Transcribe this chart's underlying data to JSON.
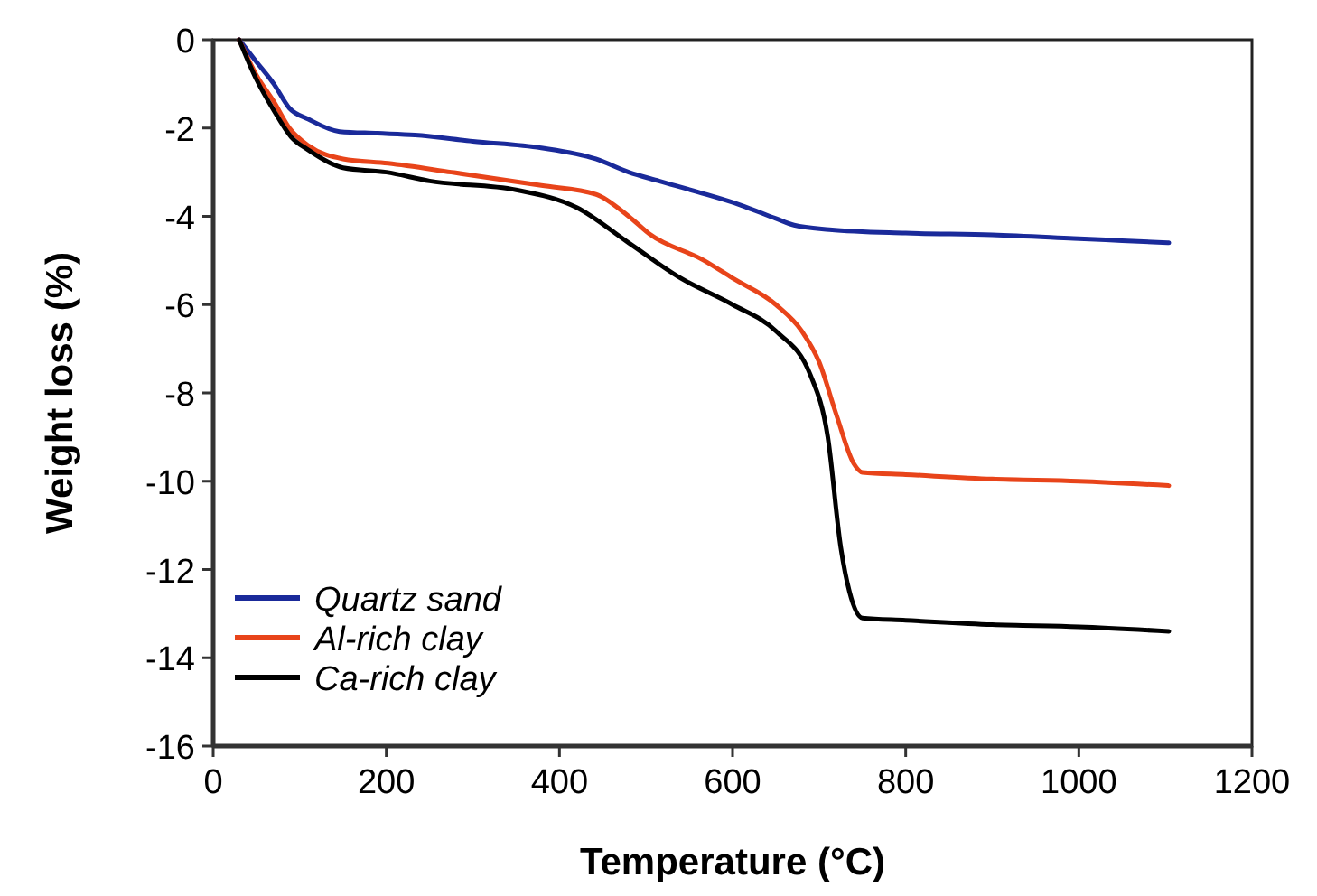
{
  "chart_data": {
    "type": "line",
    "xlabel": "Temperature (°C)",
    "ylabel": "Weight loss (%)",
    "xlim": [
      0,
      1200
    ],
    "xticks": [
      0,
      200,
      400,
      600,
      800,
      1000,
      1200
    ],
    "ylim": [
      -16,
      0
    ],
    "yticks": [
      -16,
      -14,
      -12,
      -10,
      -8,
      -6,
      -4,
      -2,
      0
    ],
    "grid": false,
    "legend": "bottom left",
    "line_style": "solid",
    "series": [
      {
        "name": "Quartz sand",
        "color": "#1a2a9a",
        "x": [
          30,
          50,
          70,
          88,
          110,
          146,
          190,
          233,
          300,
          379,
          442,
          480,
          515,
          560,
          610,
          650,
          671,
          712,
          800,
          900,
          994,
          1050,
          1104
        ],
        "values": [
          0,
          -0.5,
          -1,
          -1.55,
          -1.8,
          -2.08,
          -2.12,
          -2.16,
          -2.3,
          -2.45,
          -2.7,
          -3,
          -3.2,
          -3.45,
          -3.75,
          -4.05,
          -4.2,
          -4.3,
          -4.38,
          -4.42,
          -4.5,
          -4.55,
          -4.6
        ]
      },
      {
        "name": "Al-rich clay",
        "color": "#e8441a",
        "x": [
          30,
          50,
          70,
          88,
          110,
          150,
          202,
          275,
          379,
          442,
          480,
          504,
          567,
          600,
          650,
          680,
          700,
          720,
          740,
          750,
          800,
          900,
          1000,
          1104
        ],
        "values": [
          0,
          -0.8,
          -1.4,
          -2.0,
          -2.4,
          -2.7,
          -2.8,
          -3.0,
          -3.3,
          -3.5,
          -4.0,
          -4.4,
          -5.0,
          -5.4,
          -6.0,
          -6.6,
          -7.3,
          -8.5,
          -9.6,
          -9.8,
          -9.85,
          -9.95,
          -10.0,
          -10.1
        ]
      },
      {
        "name": "Ca-rich clay",
        "color": "#000000",
        "x": [
          30,
          50,
          70,
          90,
          110,
          150,
          200,
          250,
          350,
          420,
          480,
          540,
          600,
          650,
          690,
          710,
          725,
          735,
          750,
          800,
          900,
          1000,
          1104
        ],
        "values": [
          0,
          -0.9,
          -1.6,
          -2.2,
          -2.5,
          -2.9,
          -3.0,
          -3.2,
          -3.4,
          -3.8,
          -4.6,
          -5.4,
          -6.0,
          -6.6,
          -7.6,
          -9.0,
          -11.5,
          -12.5,
          -13.1,
          -13.15,
          -13.25,
          -13.3,
          -13.4
        ]
      }
    ]
  }
}
